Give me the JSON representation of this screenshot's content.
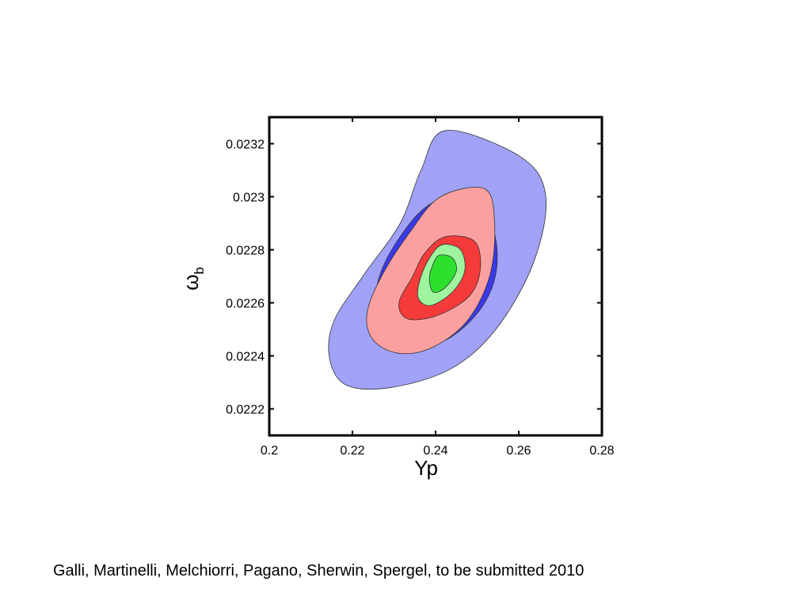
{
  "caption": "Galli, Martinelli, Melchiorri, Pagano, Sherwin, Spergel, to be submitted 2010",
  "chart_data": {
    "type": "contour",
    "xlabel": "Yp",
    "ylabel": "ω",
    "ylabel_subscript": "b",
    "xlim": [
      0.2,
      0.28
    ],
    "ylim": [
      0.0221,
      0.0233
    ],
    "x_ticks": [
      0.2,
      0.22,
      0.24,
      0.26,
      0.28
    ],
    "x_tick_labels": [
      "0.2",
      "0.22",
      "0.24",
      "0.26",
      "0.28"
    ],
    "y_ticks": [
      0.0222,
      0.0224,
      0.0226,
      0.0228,
      0.023,
      0.0232
    ],
    "y_tick_labels": [
      "0.0222",
      "0.0224",
      "0.0226",
      "0.0228",
      "0.023",
      "0.0232"
    ],
    "grid": false,
    "contours": [
      {
        "level": "blue-95",
        "color": "#a0a2f8",
        "points": [
          [
            0.2425,
            0.02325
          ],
          [
            0.2605,
            0.02315
          ],
          [
            0.2665,
            0.023
          ],
          [
            0.2635,
            0.02275
          ],
          [
            0.2545,
            0.0225
          ],
          [
            0.2435,
            0.02235
          ],
          [
            0.229,
            0.02228
          ],
          [
            0.2185,
            0.02229
          ],
          [
            0.2145,
            0.02239
          ],
          [
            0.2155,
            0.02253
          ],
          [
            0.2225,
            0.0227
          ],
          [
            0.2315,
            0.0229
          ],
          [
            0.2365,
            0.0231
          ]
        ]
      },
      {
        "level": "blue-68",
        "color": "#3a3ae8",
        "points": [
          [
            0.2385,
            0.02297
          ],
          [
            0.2488,
            0.02302
          ],
          [
            0.254,
            0.02287
          ],
          [
            0.2545,
            0.02271
          ],
          [
            0.2505,
            0.02257
          ],
          [
            0.2425,
            0.02246
          ],
          [
            0.2335,
            0.02243
          ],
          [
            0.2275,
            0.02247
          ],
          [
            0.2255,
            0.02255
          ],
          [
            0.2265,
            0.0227
          ],
          [
            0.2315,
            0.02285
          ]
        ]
      },
      {
        "level": "red-95",
        "color": "#fba0a0",
        "points": [
          [
            0.2412,
            0.023
          ],
          [
            0.2518,
            0.02303
          ],
          [
            0.2542,
            0.0229
          ],
          [
            0.253,
            0.0227
          ],
          [
            0.2475,
            0.02253
          ],
          [
            0.239,
            0.02243
          ],
          [
            0.231,
            0.02241
          ],
          [
            0.225,
            0.02246
          ],
          [
            0.2235,
            0.02256
          ],
          [
            0.227,
            0.0227
          ],
          [
            0.234,
            0.02287
          ]
        ]
      },
      {
        "level": "red-68",
        "color": "#f53a3a",
        "points": [
          [
            0.2425,
            0.02285
          ],
          [
            0.2495,
            0.02283
          ],
          [
            0.2507,
            0.02272
          ],
          [
            0.2478,
            0.02262
          ],
          [
            0.24,
            0.02255
          ],
          [
            0.2332,
            0.02254
          ],
          [
            0.2312,
            0.0226
          ],
          [
            0.2345,
            0.0227
          ],
          [
            0.2375,
            0.02279
          ]
        ]
      },
      {
        "level": "green-95",
        "color": "#9ef59e",
        "points": [
          [
            0.2418,
            0.02282
          ],
          [
            0.246,
            0.0228
          ],
          [
            0.247,
            0.02272
          ],
          [
            0.244,
            0.02264
          ],
          [
            0.2388,
            0.02259
          ],
          [
            0.2358,
            0.02262
          ],
          [
            0.2365,
            0.0227
          ],
          [
            0.239,
            0.02278
          ]
        ]
      },
      {
        "level": "green-68",
        "color": "#2ee02e",
        "points": [
          [
            0.241,
            0.02278
          ],
          [
            0.244,
            0.02277
          ],
          [
            0.245,
            0.02272
          ],
          [
            0.2425,
            0.02266
          ],
          [
            0.2395,
            0.02264
          ],
          [
            0.2385,
            0.02269
          ],
          [
            0.2395,
            0.02275
          ]
        ]
      }
    ]
  }
}
